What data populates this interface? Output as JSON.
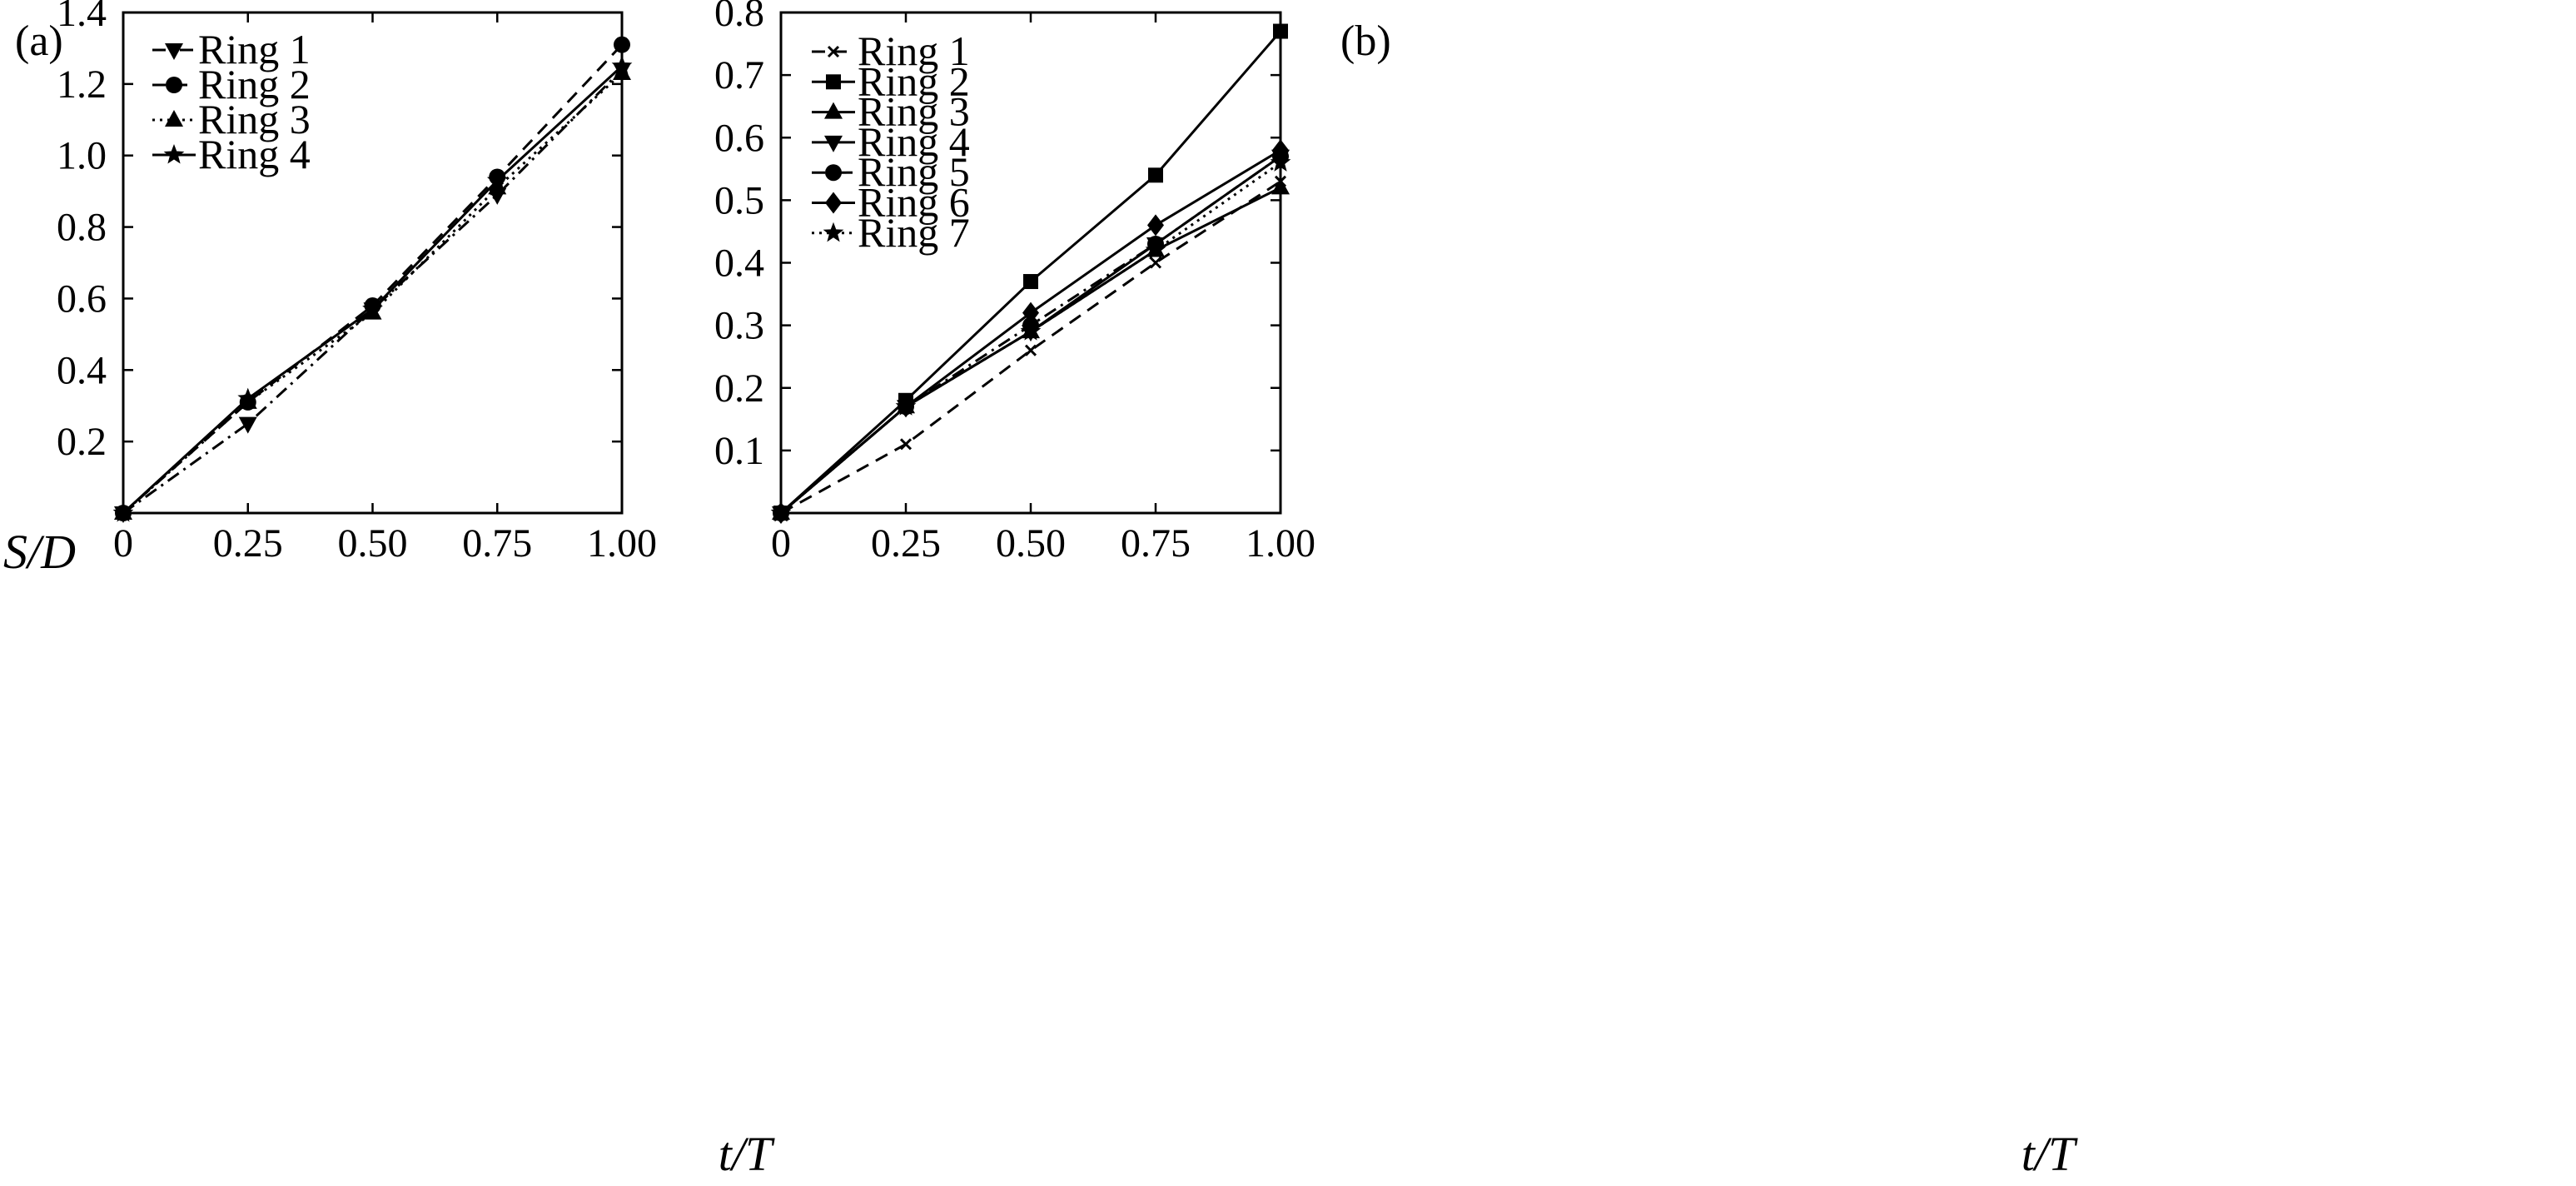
{
  "chart_data": [
    {
      "type": "line",
      "panel_label": "(a)",
      "xlabel": "t/T",
      "ylabel": "S/D",
      "xlim": [
        0,
        1.0
      ],
      "ylim": [
        0,
        1.4
      ],
      "x_ticks": [
        0,
        0.25,
        0.5,
        0.75,
        1.0
      ],
      "x_tick_labels": [
        "0",
        "0.25",
        "0.50",
        "0.75",
        "1.00"
      ],
      "y_ticks": [
        0.2,
        0.4,
        0.6,
        0.8,
        1.0,
        1.2,
        1.4
      ],
      "y_tick_labels": [
        "0.2",
        "0.4",
        "0.6",
        "0.8",
        "1.0",
        "1.2",
        "1.4"
      ],
      "legend_position": "top-left",
      "x": [
        0,
        0.25,
        0.5,
        0.75,
        1.0
      ],
      "series": [
        {
          "name": "Ring 1",
          "marker": "triangle-down",
          "dash": "dashdot",
          "values": [
            0,
            0.25,
            0.57,
            0.89,
            1.24
          ]
        },
        {
          "name": "Ring 2",
          "marker": "circle",
          "dash": "dashed",
          "values": [
            0,
            0.31,
            0.58,
            0.94,
            1.31
          ]
        },
        {
          "name": "Ring 3",
          "marker": "triangle-up",
          "dash": "dotted",
          "values": [
            0,
            0.31,
            0.56,
            0.91,
            1.23
          ]
        },
        {
          "name": "Ring 4",
          "marker": "star",
          "dash": "solid",
          "values": [
            0,
            0.32,
            0.57,
            0.93,
            1.25
          ]
        }
      ]
    },
    {
      "type": "line",
      "panel_label": "(b)",
      "xlabel": "t/T",
      "ylabel": "",
      "xlim": [
        0,
        1.0
      ],
      "ylim": [
        0,
        0.8
      ],
      "x_ticks": [
        0,
        0.25,
        0.5,
        0.75,
        1.0
      ],
      "x_tick_labels": [
        "0",
        "0.25",
        "0.50",
        "0.75",
        "1.00"
      ],
      "y_ticks": [
        0.1,
        0.2,
        0.3,
        0.4,
        0.5,
        0.6,
        0.7,
        0.8
      ],
      "y_tick_labels": [
        "0.1",
        "0.2",
        "0.3",
        "0.4",
        "0.5",
        "0.6",
        "0.7",
        "0.8"
      ],
      "legend_position": "top-left",
      "x": [
        0,
        0.25,
        0.5,
        0.75,
        1.0
      ],
      "series": [
        {
          "name": "Ring 1",
          "marker": "cross",
          "dash": "dashed",
          "values": [
            0,
            0.11,
            0.26,
            0.4,
            0.53
          ]
        },
        {
          "name": "Ring 2",
          "marker": "square",
          "dash": "solid",
          "values": [
            0,
            0.18,
            0.37,
            0.54,
            0.77
          ]
        },
        {
          "name": "Ring 3",
          "marker": "triangle-up",
          "dash": "solid",
          "values": [
            0,
            0.17,
            0.29,
            0.42,
            0.52
          ]
        },
        {
          "name": "Ring 4",
          "marker": "triangle-down",
          "dash": "solid",
          "values": [
            0,
            0.17,
            0.29,
            0.43,
            0.57
          ]
        },
        {
          "name": "Ring 5",
          "marker": "circle",
          "dash": "dashdot",
          "values": [
            0,
            0.17,
            0.3,
            0.43,
            0.57
          ]
        },
        {
          "name": "Ring 6",
          "marker": "diamond",
          "dash": "solid",
          "values": [
            0,
            0.17,
            0.32,
            0.46,
            0.58
          ]
        },
        {
          "name": "Ring 7",
          "marker": "star",
          "dash": "dotted",
          "values": [
            0,
            0.17,
            0.29,
            0.42,
            0.56
          ]
        }
      ]
    }
  ]
}
